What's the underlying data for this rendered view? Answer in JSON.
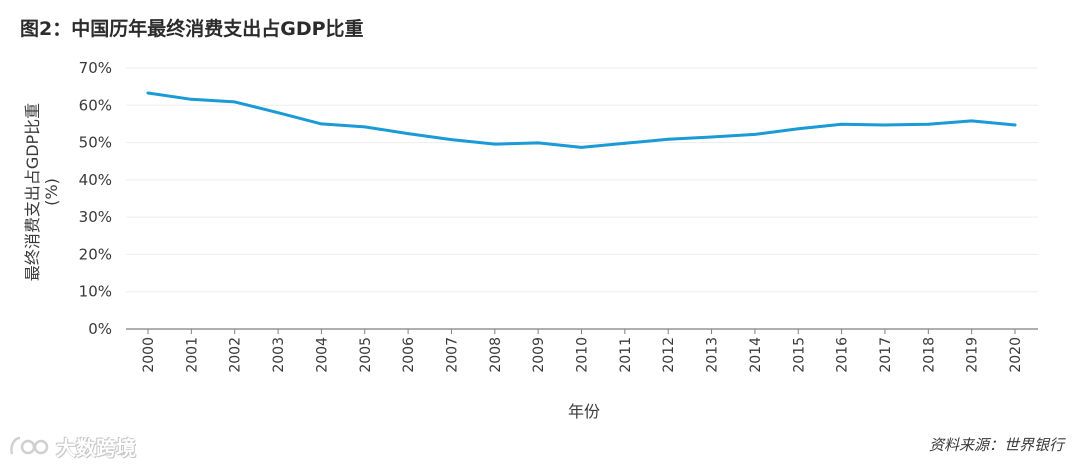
{
  "title": "图2：中国历年最终消费支出占GDP比重",
  "source": "资料来源：世界银行",
  "watermark": "大数跨境",
  "colors": {
    "line": "#1a9ad6",
    "grid": "#ededed",
    "axis": "#7f7f7f",
    "text": "#3a3a3a"
  },
  "chart_data": {
    "type": "line",
    "title": "图2：中国历年最终消费支出占GDP比重",
    "xlabel": "年份",
    "ylabel": "最终消费支出占GDP比重 (%)",
    "ylabel_lines": [
      "最终消费支出占GDP比重",
      "(%)"
    ],
    "ylim": [
      0,
      70
    ],
    "yticks": [
      0,
      10,
      20,
      30,
      40,
      50,
      60,
      70
    ],
    "ytick_labels": [
      "0%",
      "10%",
      "20%",
      "30%",
      "40%",
      "50%",
      "60%",
      "70%"
    ],
    "grid": true,
    "legend": "none",
    "categories": [
      "2000",
      "2001",
      "2002",
      "2003",
      "2004",
      "2005",
      "2006",
      "2007",
      "2008",
      "2009",
      "2010",
      "2011",
      "2012",
      "2013",
      "2014",
      "2015",
      "2016",
      "2017",
      "2018",
      "2019",
      "2020"
    ],
    "series": [
      {
        "name": "最终消费支出占GDP比重",
        "values": [
          63.3,
          61.6,
          60.9,
          58.0,
          55.0,
          54.2,
          52.4,
          50.8,
          49.6,
          49.9,
          48.7,
          49.8,
          50.9,
          51.5,
          52.2,
          53.7,
          54.9,
          54.7,
          54.9,
          55.8,
          54.7
        ]
      }
    ]
  }
}
